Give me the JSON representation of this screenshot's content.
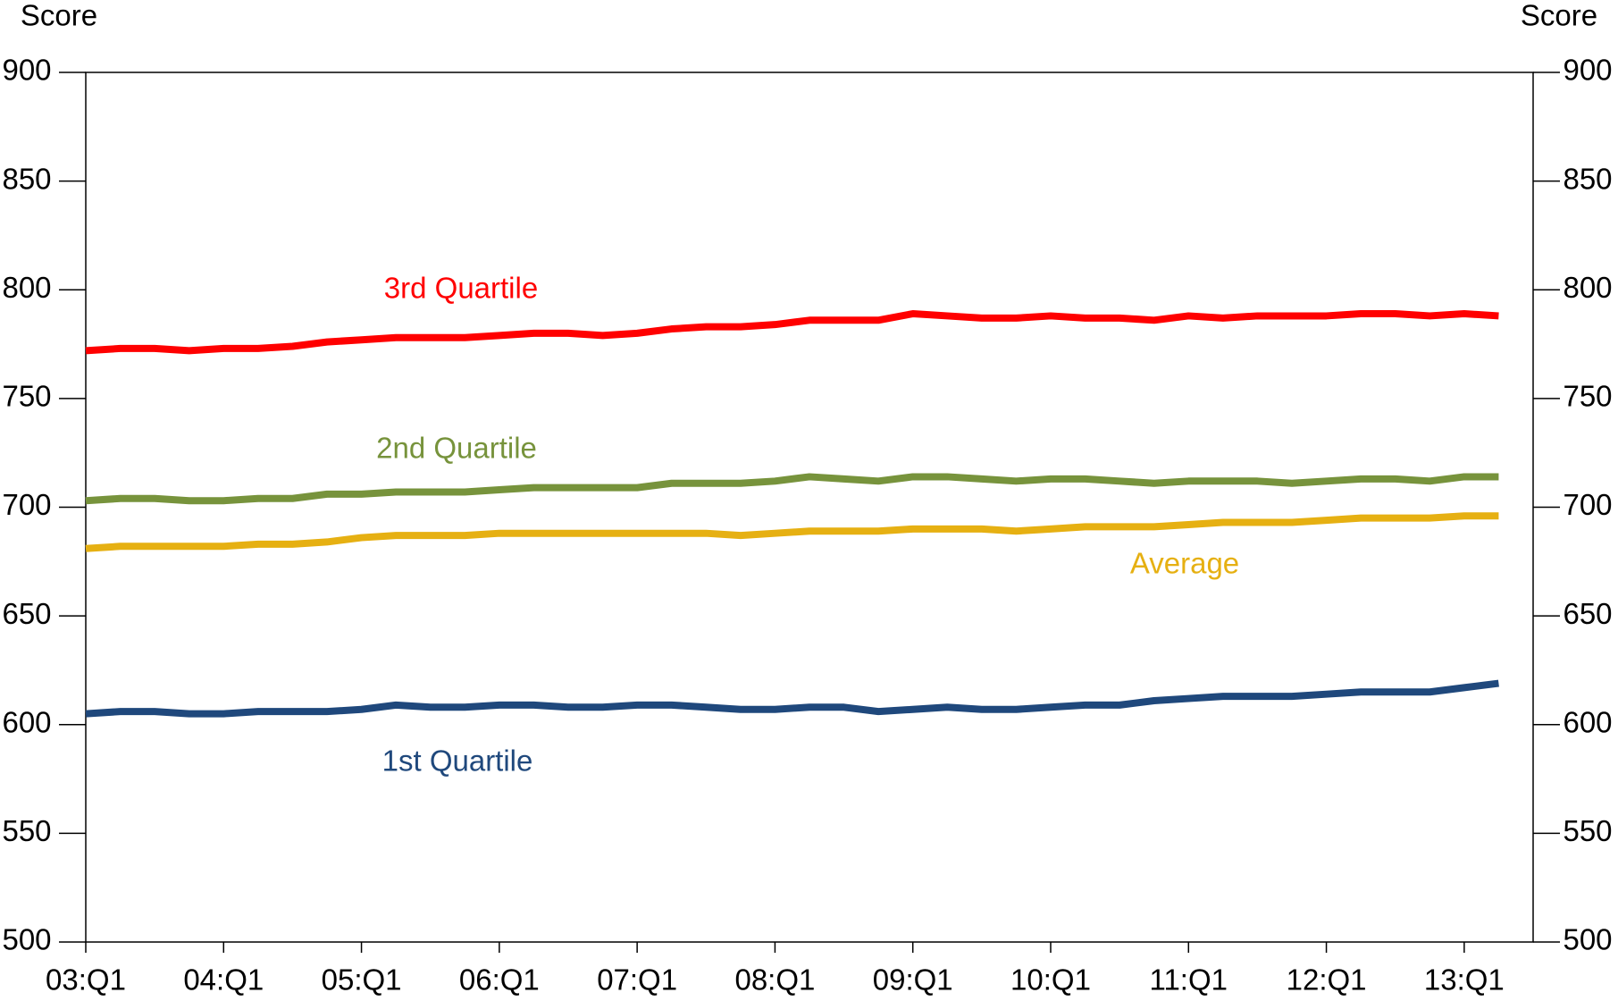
{
  "chart_data": {
    "type": "line",
    "ylabel": "Score",
    "y2label": "Score",
    "categories": [
      "03:Q1",
      null,
      null,
      null,
      "04:Q1",
      null,
      null,
      null,
      "05:Q1",
      null,
      null,
      null,
      "06:Q1",
      null,
      null,
      null,
      "07:Q1",
      null,
      null,
      null,
      "08:Q1",
      null,
      null,
      null,
      "09:Q1",
      null,
      null,
      null,
      "10:Q1",
      null,
      null,
      null,
      "11:Q1",
      null,
      null,
      null,
      "12:Q1",
      null,
      null,
      null,
      "13:Q1",
      null
    ],
    "series": [
      {
        "name": "3rd Quartile",
        "color": "#ff0000",
        "values": [
          772,
          773,
          773,
          772,
          773,
          773,
          774,
          776,
          777,
          778,
          778,
          778,
          779,
          780,
          780,
          779,
          780,
          782,
          783,
          783,
          784,
          786,
          786,
          786,
          789,
          788,
          787,
          787,
          788,
          787,
          787,
          786,
          788,
          787,
          788,
          788,
          788,
          789,
          789,
          788,
          789,
          788
        ]
      },
      {
        "name": "2nd Quartile",
        "color": "#77933c",
        "values": [
          703,
          704,
          704,
          703,
          703,
          704,
          704,
          706,
          706,
          707,
          707,
          707,
          708,
          709,
          709,
          709,
          709,
          711,
          711,
          711,
          712,
          714,
          713,
          712,
          714,
          714,
          713,
          712,
          713,
          713,
          712,
          711,
          712,
          712,
          712,
          711,
          712,
          713,
          713,
          712,
          714,
          714
        ]
      },
      {
        "name": "Average",
        "color": "#e6b012",
        "values": [
          681,
          682,
          682,
          682,
          682,
          683,
          683,
          684,
          686,
          687,
          687,
          687,
          688,
          688,
          688,
          688,
          688,
          688,
          688,
          687,
          688,
          689,
          689,
          689,
          690,
          690,
          690,
          689,
          690,
          691,
          691,
          691,
          692,
          693,
          693,
          693,
          694,
          695,
          695,
          695,
          696,
          696
        ]
      },
      {
        "name": "1st Quartile",
        "color": "#1f487c",
        "values": [
          605,
          606,
          606,
          605,
          605,
          606,
          606,
          606,
          607,
          609,
          608,
          608,
          609,
          609,
          608,
          608,
          609,
          609,
          608,
          607,
          607,
          608,
          608,
          606,
          607,
          608,
          607,
          607,
          608,
          609,
          609,
          611,
          612,
          613,
          613,
          613,
          614,
          615,
          615,
          615,
          617,
          619
        ]
      }
    ],
    "ylim": [
      500,
      900
    ],
    "yticks": [
      500,
      550,
      600,
      650,
      700,
      750,
      800,
      850,
      900
    ],
    "y2lim": [
      500,
      900
    ],
    "y2ticks": [
      500,
      550,
      600,
      650,
      700,
      750,
      800,
      850,
      900
    ]
  }
}
